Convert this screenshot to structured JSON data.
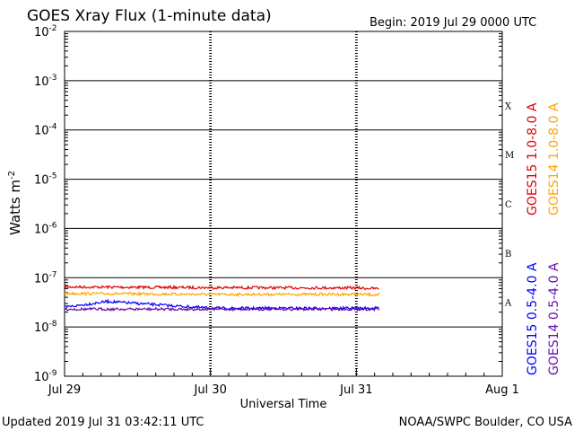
{
  "header": {
    "title": "GOES Xray Flux (1-minute data)",
    "begin_label": "Begin:  2019 Jul 29 0000 UTC"
  },
  "footer": {
    "updated": "Updated 2019 Jul 31 03:42:11 UTC",
    "credit": "NOAA/SWPC Boulder, CO USA"
  },
  "colors": {
    "goes15_long": "#e00000",
    "goes14_long": "#ffa500",
    "goes15_short": "#0000ff",
    "goes14_short": "#6a0dad"
  },
  "chart_data": {
    "type": "line",
    "title": "GOES Xray Flux (1-minute data)",
    "xlabel": "Universal Time",
    "ylabel": "Watts m",
    "ylabel_superscript": "-2",
    "yscale": "log",
    "ylim": [
      1e-09,
      0.01
    ],
    "xlim": [
      "2019-07-29T00:00",
      "2019-08-01T00:00"
    ],
    "x_ticks": [
      "Jul 29",
      "Jul 30",
      "Jul 31",
      "Aug 1"
    ],
    "y_ticks": [
      {
        "base": "10",
        "exp": "-2"
      },
      {
        "base": "10",
        "exp": "-3"
      },
      {
        "base": "10",
        "exp": "-4"
      },
      {
        "base": "10",
        "exp": "-5"
      },
      {
        "base": "10",
        "exp": "-6"
      },
      {
        "base": "10",
        "exp": "-7"
      },
      {
        "base": "10",
        "exp": "-8"
      },
      {
        "base": "10",
        "exp": "-9"
      }
    ],
    "flare_classes": [
      "X",
      "M",
      "C",
      "B",
      "A"
    ],
    "grid": true,
    "series": [
      {
        "name": "GOES15 1.0-8.0 A",
        "color": "#e00000",
        "x": [
          "2019-07-29T00:00",
          "2019-07-30T00:00",
          "2019-07-31T00:00",
          "2019-07-31T03:42"
        ],
        "y": [
          6.5e-08,
          6.3e-08,
          6.2e-08,
          6e-08
        ]
      },
      {
        "name": "GOES14 1.0-8.0 A",
        "color": "#ffa500",
        "x": [
          "2019-07-29T00:00",
          "2019-07-30T00:00",
          "2019-07-31T00:00",
          "2019-07-31T03:42"
        ],
        "y": [
          4.8e-08,
          4.6e-08,
          4.6e-08,
          4.5e-08
        ]
      },
      {
        "name": "GOES15 0.5-4.0 A",
        "color": "#0000ff",
        "x": [
          "2019-07-29T00:00",
          "2019-07-29T07:00",
          "2019-07-30T00:00",
          "2019-07-31T00:00",
          "2019-07-31T03:42"
        ],
        "y": [
          2.5e-08,
          3.3e-08,
          2.4e-08,
          2.4e-08,
          2.4e-08
        ]
      },
      {
        "name": "GOES14 0.5-4.0 A",
        "color": "#6a0dad",
        "x": [
          "2019-07-29T00:00",
          "2019-07-30T00:00",
          "2019-07-31T00:00",
          "2019-07-31T03:42"
        ],
        "y": [
          2.3e-08,
          2.3e-08,
          2.3e-08,
          2.3e-08
        ]
      }
    ]
  }
}
